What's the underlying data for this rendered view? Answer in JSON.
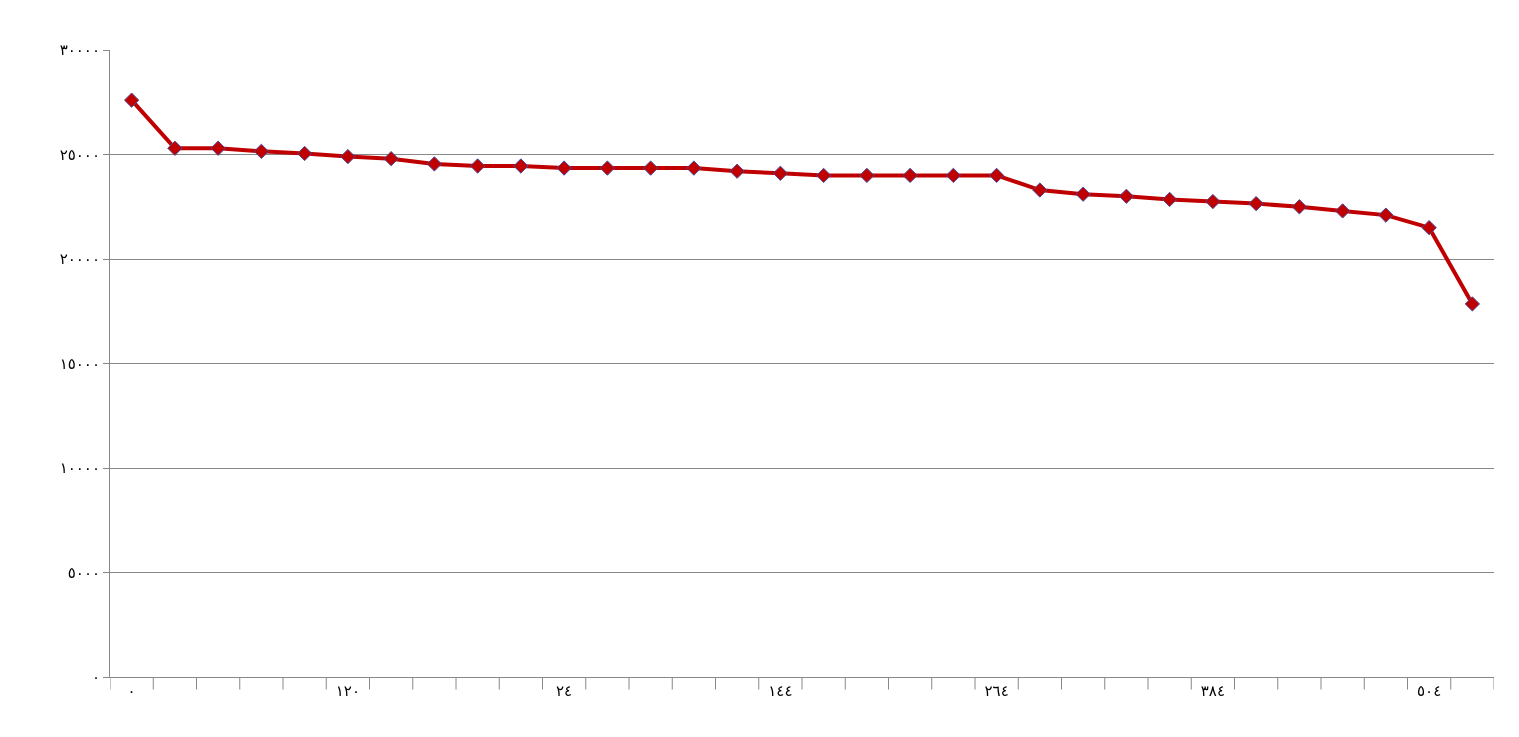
{
  "chart_data": {
    "type": "line",
    "categories": [
      "٠",
      null,
      null,
      null,
      null,
      "١٢٠",
      null,
      null,
      null,
      null,
      "٢٤",
      null,
      null,
      null,
      null,
      "١٤٤",
      null,
      null,
      null,
      null,
      "٢٦٤",
      null,
      null,
      null,
      null,
      "٣٨٤",
      null,
      null,
      null,
      null,
      "٥٠٤",
      null
    ],
    "series": [
      {
        "color": "#c00000",
        "values": [
          27600,
          25300,
          25300,
          25150,
          25050,
          24900,
          24800,
          24550,
          24450,
          24450,
          24350,
          24350,
          24350,
          24350,
          24200,
          24100,
          24000,
          24000,
          24000,
          24000,
          24000,
          23300,
          23100,
          23000,
          22850,
          22750,
          22650,
          22500,
          22300,
          22100,
          21500,
          17850
        ]
      }
    ],
    "ylim": [
      0,
      30000
    ],
    "yticks": [
      {
        "value": 0,
        "label": "٠"
      },
      {
        "value": 5000,
        "label": "٥٠٠٠"
      },
      {
        "value": 10000,
        "label": "١٠٠٠٠"
      },
      {
        "value": 15000,
        "label": "١٥٠٠٠"
      },
      {
        "value": 20000,
        "label": "٢٠٠٠٠"
      },
      {
        "value": 25000,
        "label": "٢٥٠٠٠"
      },
      {
        "value": 30000,
        "label": "٣٠٠٠٠"
      }
    ],
    "grid": "y",
    "legend": false,
    "marker": "diamond",
    "line_style": "solid"
  }
}
